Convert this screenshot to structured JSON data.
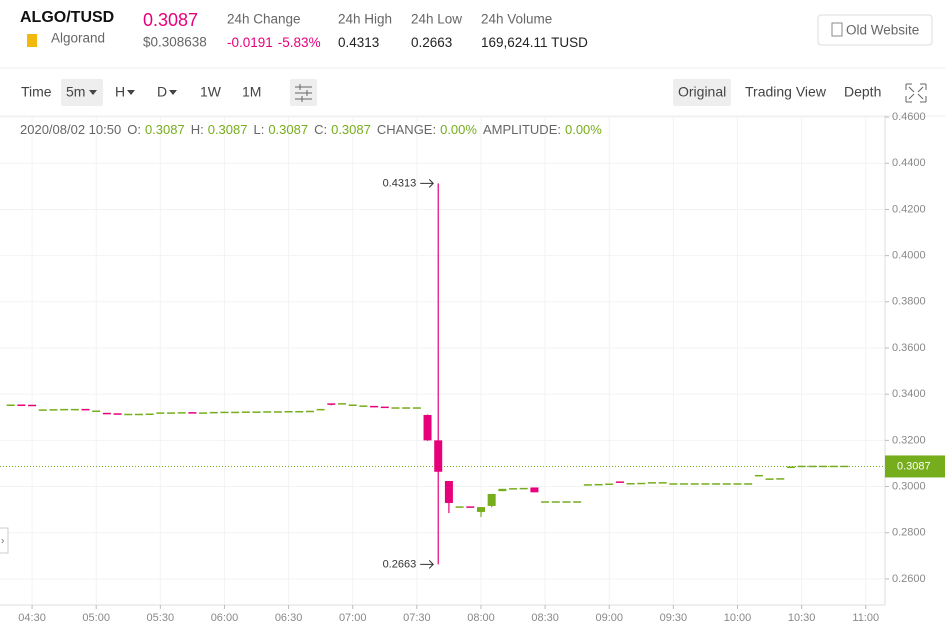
{
  "header": {
    "pair": "ALGO/TUSD",
    "name": "Algorand",
    "price": "0.3087",
    "price_usd": "$0.308638",
    "stats": [
      {
        "label": "24h Change",
        "values": [
          "-0.0191",
          "-5.83%"
        ]
      },
      {
        "label": "24h High",
        "values": [
          "0.4313"
        ]
      },
      {
        "label": "24h Low",
        "values": [
          "0.2663"
        ]
      },
      {
        "label": "24h Volume",
        "values": [
          "169,624.11 TUSD"
        ]
      }
    ],
    "button": "Old Website"
  },
  "toolbar": {
    "left": [
      "Time",
      "5m",
      "H",
      "D",
      "1W",
      "1M"
    ],
    "right": [
      "Original",
      "Trading View",
      "Depth"
    ]
  },
  "ohlc_info": {
    "datetime": "2020/08/02 10:50",
    "items": [
      {
        "label": "O:",
        "value": "0.3087"
      },
      {
        "label": "H:",
        "value": "0.3087"
      },
      {
        "label": "L:",
        "value": "0.3087"
      },
      {
        "label": "C:",
        "value": "0.3087"
      },
      {
        "label": "CHANGE:",
        "value": "0.00%"
      },
      {
        "label": "AMPLITUDE:",
        "value": "0.00%"
      }
    ]
  },
  "chart_data": {
    "type": "candlestick",
    "up_color": "#76ad1c",
    "down_color": "#e6007a",
    "grid": true,
    "xlim": [
      "04:15",
      "11:09"
    ],
    "xticks": [
      "04:30",
      "05:00",
      "05:30",
      "06:00",
      "06:30",
      "07:00",
      "07:30",
      "08:00",
      "08:30",
      "09:00",
      "09:30",
      "10:00",
      "10:30",
      "11:00"
    ],
    "ylim": [
      0.2487,
      0.4609
    ],
    "yticks": [
      {
        "value": 0.26,
        "label": "0.2600"
      },
      {
        "value": 0.28,
        "label": "0.2800"
      },
      {
        "value": 0.3,
        "label": "0.3000"
      },
      {
        "value": 0.32,
        "label": "0.3200"
      },
      {
        "value": 0.34,
        "label": "0.3400"
      },
      {
        "value": 0.36,
        "label": "0.3600"
      },
      {
        "value": 0.38,
        "label": "0.3800"
      },
      {
        "value": 0.4,
        "label": "0.4000"
      },
      {
        "value": 0.42,
        "label": "0.4200"
      },
      {
        "value": 0.44,
        "label": "0.4400"
      },
      {
        "value": 0.46,
        "label": "0.4600"
      }
    ],
    "last_price": 0.3087,
    "annotations": [
      {
        "x": "07:40",
        "value": 0.4313
      },
      {
        "x": "07:40",
        "value": 0.2663
      }
    ],
    "x": [
      "04:20",
      "04:25",
      "04:30",
      "04:35",
      "04:40",
      "04:45",
      "04:50",
      "04:55",
      "05:00",
      "05:05",
      "05:10",
      "05:15",
      "05:20",
      "05:25",
      "05:30",
      "05:35",
      "05:40",
      "05:45",
      "05:50",
      "05:55",
      "06:00",
      "06:05",
      "06:10",
      "06:15",
      "06:20",
      "06:25",
      "06:30",
      "06:35",
      "06:40",
      "06:45",
      "06:50",
      "06:55",
      "07:00",
      "07:05",
      "07:10",
      "07:15",
      "07:20",
      "07:25",
      "07:30",
      "07:35",
      "07:40",
      "07:45",
      "07:50",
      "07:55",
      "08:00",
      "08:05",
      "08:10",
      "08:15",
      "08:20",
      "08:25",
      "08:30",
      "08:35",
      "08:40",
      "08:45",
      "08:50",
      "08:55",
      "09:00",
      "09:05",
      "09:10",
      "09:15",
      "09:20",
      "09:25",
      "09:30",
      "09:35",
      "09:40",
      "09:45",
      "09:50",
      "09:55",
      "10:00",
      "10:05",
      "10:10",
      "10:15",
      "10:20",
      "10:25",
      "10:30",
      "10:35",
      "10:40",
      "10:45",
      "10:50"
    ],
    "open": [
      0.335,
      0.3352,
      0.3351,
      0.333,
      0.3331,
      0.3332,
      0.3333,
      0.3333,
      0.3325,
      0.3316,
      0.3314,
      0.3312,
      0.3312,
      0.3312,
      0.3316,
      0.3318,
      0.3318,
      0.3319,
      0.3317,
      0.3318,
      0.332,
      0.3321,
      0.3321,
      0.3322,
      0.3322,
      0.3323,
      0.3323,
      0.3324,
      0.3325,
      0.333,
      0.3357,
      0.3357,
      0.335,
      0.3348,
      0.3346,
      0.3343,
      0.334,
      0.334,
      0.334,
      0.331,
      0.32,
      0.3024,
      0.2911,
      0.2911,
      0.289,
      0.2916,
      0.298,
      0.299,
      0.299,
      0.2996,
      0.2933,
      0.2933,
      0.2933,
      0.2933,
      0.3005,
      0.3007,
      0.3008,
      0.3019,
      0.3012,
      0.3012,
      0.3015,
      0.3016,
      0.3011,
      0.3011,
      0.3011,
      0.3011,
      0.3011,
      0.3011,
      0.3011,
      0.3011,
      0.3045,
      0.303,
      0.3032,
      0.308,
      0.3087,
      0.3087,
      0.3087,
      0.3087,
      0.3087
    ],
    "high": [
      0.3352,
      0.3352,
      0.3351,
      0.3331,
      0.3332,
      0.3333,
      0.3333,
      0.3333,
      0.3326,
      0.3316,
      0.3314,
      0.3312,
      0.3312,
      0.3313,
      0.3318,
      0.3318,
      0.3319,
      0.3319,
      0.3318,
      0.332,
      0.3321,
      0.3321,
      0.3322,
      0.3322,
      0.3323,
      0.3323,
      0.3324,
      0.3324,
      0.3325,
      0.3333,
      0.3357,
      0.3358,
      0.3352,
      0.3348,
      0.3346,
      0.3343,
      0.334,
      0.334,
      0.334,
      0.3312,
      0.4313,
      0.3024,
      0.2913,
      0.2911,
      0.2911,
      0.2968,
      0.299,
      0.299,
      0.2991,
      0.2996,
      0.2933,
      0.2933,
      0.2933,
      0.2933,
      0.3007,
      0.3008,
      0.301,
      0.3019,
      0.3012,
      0.3013,
      0.3016,
      0.3016,
      0.3011,
      0.3011,
      0.3011,
      0.3011,
      0.3011,
      0.3011,
      0.3011,
      0.3011,
      0.3047,
      0.3032,
      0.3033,
      0.3087,
      0.3087,
      0.3087,
      0.3087,
      0.3087,
      0.3087
    ],
    "low": [
      0.335,
      0.3351,
      0.335,
      0.333,
      0.3331,
      0.3332,
      0.3333,
      0.3332,
      0.3325,
      0.3314,
      0.3312,
      0.3312,
      0.3312,
      0.3312,
      0.3316,
      0.3318,
      0.3318,
      0.3317,
      0.3317,
      0.3318,
      0.332,
      0.3321,
      0.3321,
      0.3322,
      0.3322,
      0.3323,
      0.3323,
      0.3324,
      0.3325,
      0.333,
      0.3352,
      0.3357,
      0.335,
      0.3348,
      0.3344,
      0.3342,
      0.334,
      0.334,
      0.334,
      0.3198,
      0.2663,
      0.2885,
      0.2909,
      0.291,
      0.2868,
      0.291,
      0.298,
      0.299,
      0.299,
      0.2975,
      0.2933,
      0.2933,
      0.2933,
      0.2933,
      0.3005,
      0.3007,
      0.3008,
      0.3016,
      0.3012,
      0.3012,
      0.3015,
      0.3016,
      0.3011,
      0.3011,
      0.3011,
      0.3011,
      0.3011,
      0.3011,
      0.3011,
      0.3011,
      0.3045,
      0.303,
      0.3032,
      0.308,
      0.3087,
      0.3087,
      0.3087,
      0.3087,
      0.3087
    ],
    "close": [
      0.3352,
      0.3351,
      0.335,
      0.3331,
      0.3332,
      0.3333,
      0.3333,
      0.3332,
      0.3326,
      0.3314,
      0.3312,
      0.3312,
      0.3312,
      0.3313,
      0.3318,
      0.3318,
      0.3319,
      0.3317,
      0.3318,
      0.332,
      0.3321,
      0.3321,
      0.3322,
      0.3322,
      0.3323,
      0.3323,
      0.3324,
      0.3324,
      0.3325,
      0.3333,
      0.3352,
      0.3358,
      0.3352,
      0.3348,
      0.3344,
      0.3342,
      0.334,
      0.334,
      0.334,
      0.32,
      0.3064,
      0.2929,
      0.2911,
      0.291,
      0.2911,
      0.2968,
      0.299,
      0.299,
      0.2991,
      0.2975,
      0.2933,
      0.2933,
      0.2933,
      0.2933,
      0.3007,
      0.3008,
      0.301,
      0.3016,
      0.3012,
      0.3013,
      0.3016,
      0.3016,
      0.3011,
      0.3011,
      0.3011,
      0.3011,
      0.3011,
      0.3011,
      0.3011,
      0.3011,
      0.3047,
      0.3032,
      0.3033,
      0.3087,
      0.3087,
      0.3087,
      0.3087,
      0.3087,
      0.3087
    ]
  }
}
